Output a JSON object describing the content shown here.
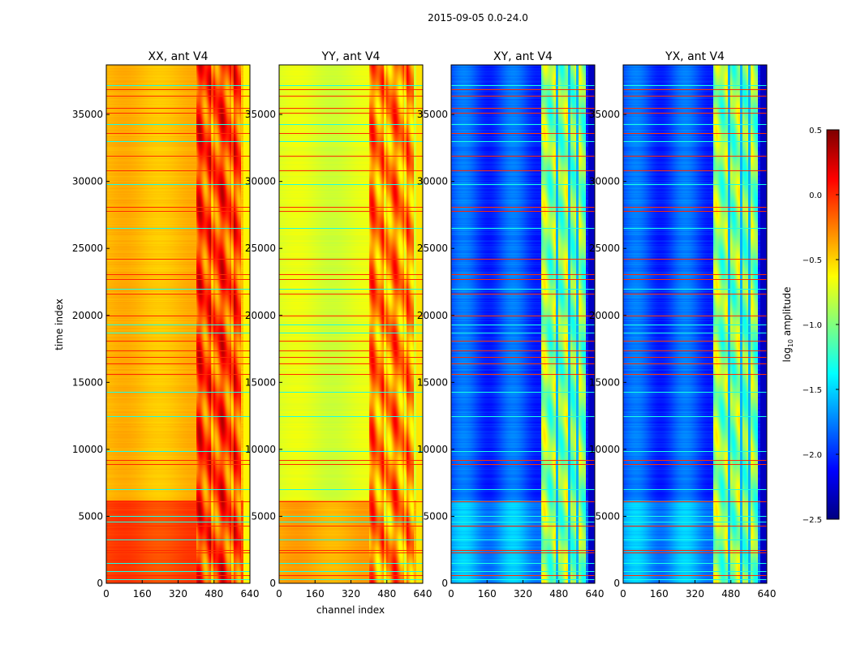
{
  "chart_data": {
    "type": "heatmap",
    "title": "2015-09-05 0.0-24.0",
    "xlabel": "channel index",
    "ylabel": "time index",
    "xlim": [
      0,
      640
    ],
    "ylim": [
      0,
      38700
    ],
    "xticks": [
      0,
      160,
      320,
      480,
      640
    ],
    "yticks": [
      0,
      5000,
      10000,
      15000,
      20000,
      25000,
      30000,
      35000
    ],
    "panels": [
      {
        "title": "XX, ant V4",
        "base_level": -0.45,
        "low_time_level": -0.1,
        "band_level": 0.1,
        "edge_level": -0.6
      },
      {
        "title": "YY, ant V4",
        "base_level": -0.75,
        "low_time_level": -0.4,
        "band_level": -0.1,
        "edge_level": -0.55
      },
      {
        "title": "XY, ant V4",
        "base_level": -1.95,
        "low_time_level": -1.7,
        "band_level": -0.8,
        "edge_level": -2.3
      },
      {
        "title": "YX, ant V4",
        "base_level": -1.95,
        "low_time_level": -1.7,
        "band_level": -0.8,
        "edge_level": -2.3
      }
    ],
    "band_channels": [
      400,
      600
    ],
    "low_time_end": 6200,
    "flagged_rows_high": [
      600,
      2300,
      2500,
      4300,
      6100,
      8900,
      9200,
      15600,
      16400,
      16900,
      17400,
      18100,
      20000,
      21600,
      22700,
      23100,
      24200,
      27800,
      28100,
      30800,
      31900,
      33600,
      35100,
      35500,
      36400,
      36900
    ],
    "flagged_rows_low": [
      300,
      900,
      1500,
      3300,
      4600,
      5000,
      7000,
      9900,
      12500,
      14300,
      18700,
      19300,
      22000,
      26500,
      29800,
      33000,
      34300,
      37200
    ],
    "colorbar": {
      "label": "log10 amplitude",
      "label_main": "log",
      "label_sub": "10",
      "label_rest": " amplitude",
      "colormap": "jet",
      "range": [
        -2.5,
        0.5
      ],
      "ticks": [
        "0.5",
        "0.0",
        "−0.5",
        "−1.0",
        "−1.5",
        "−2.0",
        "−2.5"
      ],
      "tick_values": [
        0.5,
        0.0,
        -0.5,
        -1.0,
        -1.5,
        -2.0,
        -2.5
      ]
    }
  }
}
